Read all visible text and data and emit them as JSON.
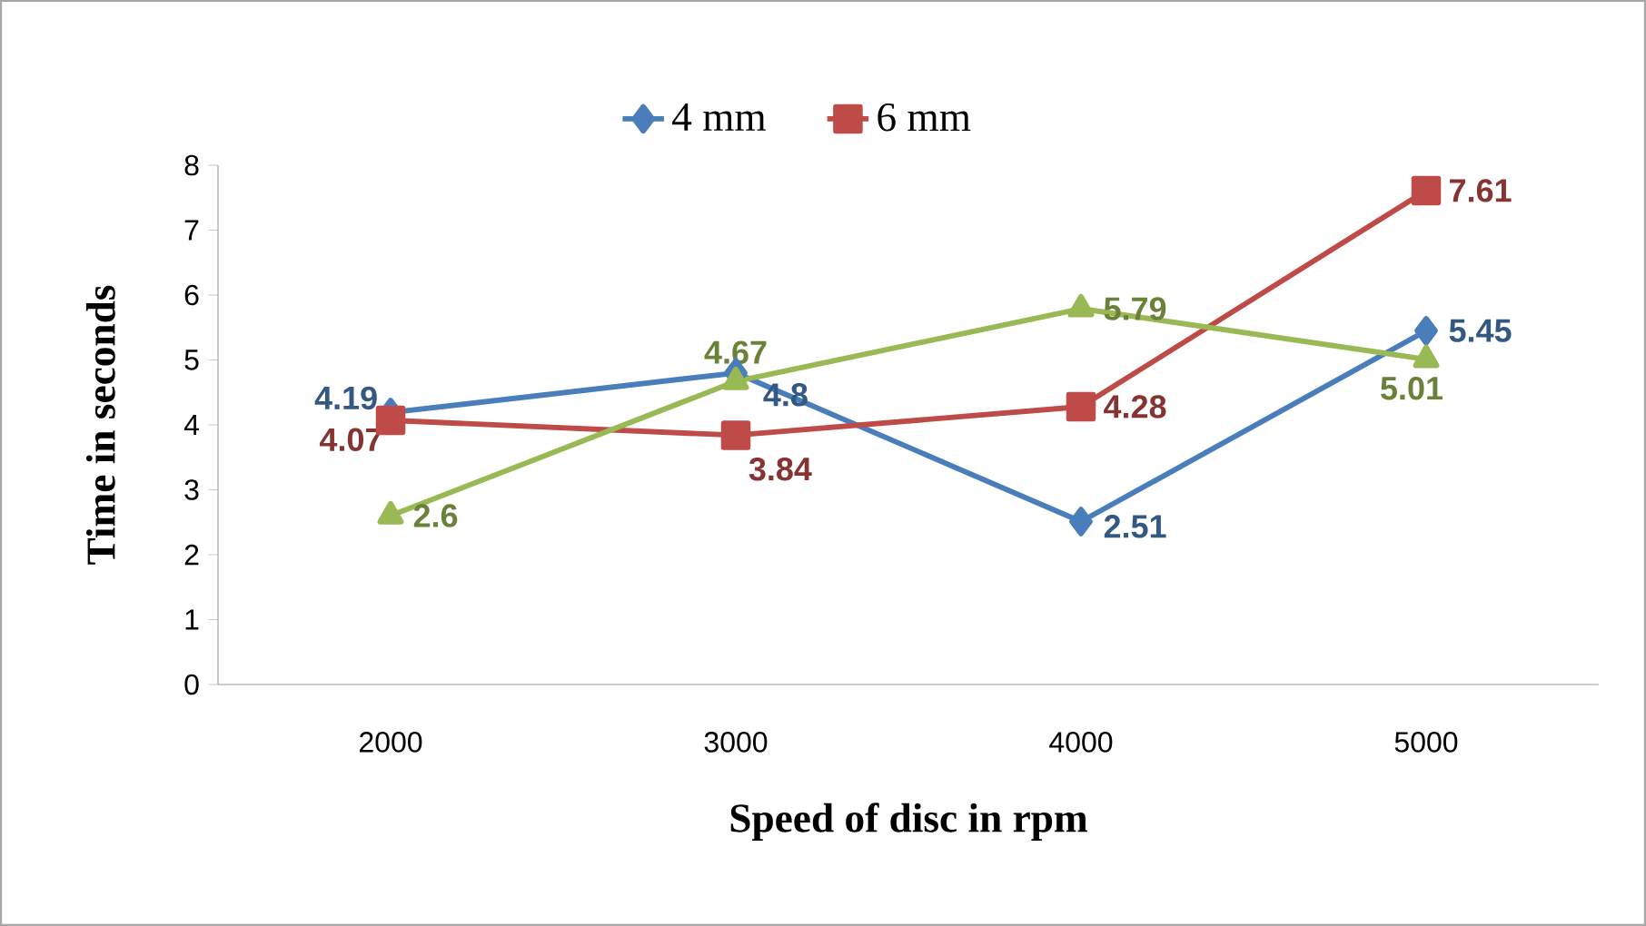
{
  "chart_data": {
    "type": "line",
    "xlabel": "Speed of disc in rpm",
    "ylabel": "Time in seconds",
    "categories": [
      "2000",
      "3000",
      "4000",
      "5000"
    ],
    "series": [
      {
        "name": "4 mm",
        "color": "#4a7ebb",
        "marker": "diamond",
        "values": [
          4.19,
          4.8,
          2.51,
          5.45
        ]
      },
      {
        "name": "6 mm",
        "color": "#be4b48",
        "marker": "square",
        "values": [
          4.07,
          3.84,
          4.28,
          7.61
        ]
      },
      {
        "color": "#98b954",
        "marker": "triangle",
        "values": [
          2.6,
          4.67,
          5.79,
          5.01
        ]
      }
    ],
    "ylim": [
      0,
      8
    ],
    "yticks": [
      0,
      1,
      2,
      3,
      4,
      5,
      6,
      7,
      8
    ],
    "grid": false,
    "legend": "top",
    "data_labels": true
  }
}
